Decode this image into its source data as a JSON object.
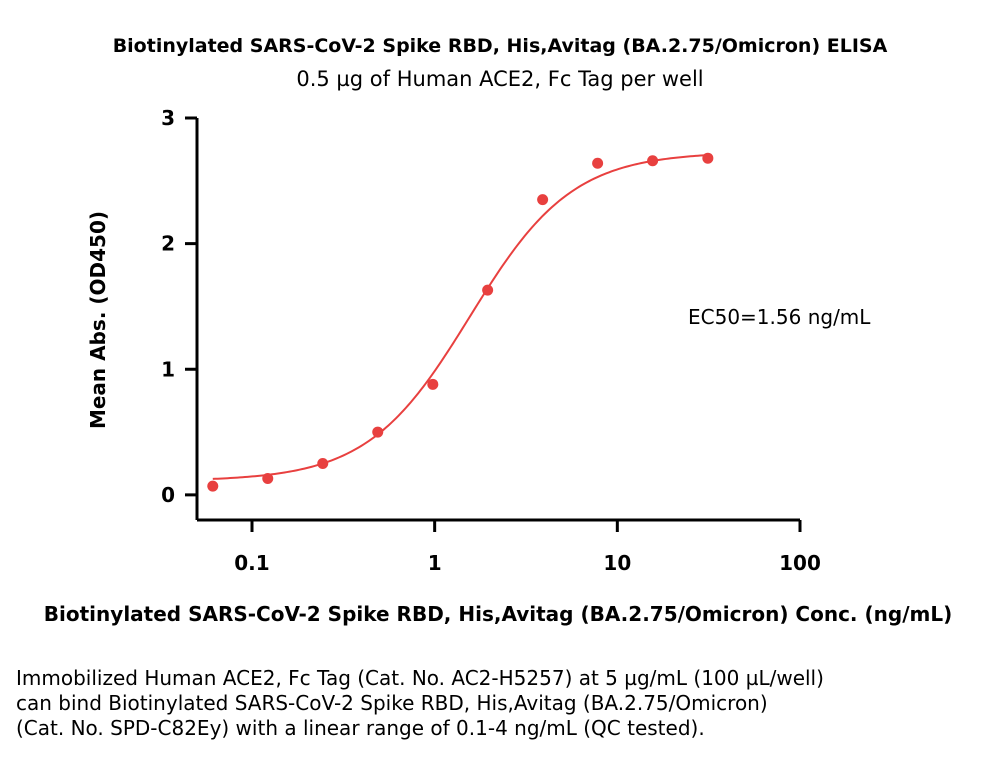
{
  "chart_data": {
    "type": "scatter",
    "title": "Biotinylated SARS-CoV-2 Spike RBD, His,Avitag (BA.2.75/Omicron) ELISA",
    "subtitle": "0.5 µg of Human ACE2, Fc Tag per well",
    "xlabel": "Biotinylated SARS-CoV-2 Spike RBD, His,Avitag (BA.2.75/Omicron) Conc. (ng/mL)",
    "ylabel": "Mean Abs. (OD450)",
    "x_scale": "log",
    "xlim": [
      0.05,
      100
    ],
    "ylim": [
      -0.2,
      3
    ],
    "x_ticks": [
      0.1,
      1,
      10,
      100
    ],
    "x_tick_labels": [
      "0.1",
      "1",
      "10",
      "100"
    ],
    "y_ticks": [
      0,
      1,
      2,
      3
    ],
    "y_tick_labels": [
      "0",
      "1",
      "2",
      "3"
    ],
    "grid": false,
    "legend": "none",
    "color": "#e8403f",
    "series": [
      {
        "x": [
          0.061,
          0.122,
          0.244,
          0.488,
          0.977,
          1.95,
          3.9,
          7.8,
          15.6,
          31.3
        ],
        "y": [
          0.07,
          0.13,
          0.25,
          0.5,
          0.88,
          1.63,
          2.35,
          2.64,
          2.66,
          2.68
        ]
      }
    ],
    "fit": {
      "type": "4PL",
      "bottom": 0.11,
      "top": 2.73,
      "ec50": 1.56,
      "hill": 1.55,
      "x_range": [
        0.061,
        31.3
      ]
    },
    "annotations": [
      "EC50=1.56 ng/mL"
    ]
  },
  "caption": {
    "lines": [
      "Immobilized Human ACE2, Fc Tag (Cat. No. AC2-H5257) at 5 µg/mL (100 µL/well)",
      "can bind Biotinylated SARS-CoV-2 Spike RBD, His,Avitag (BA.2.75/Omicron)",
      "(Cat. No. SPD-C82Ey) with a linear range of 0.1-4 ng/mL (QC tested)."
    ]
  }
}
